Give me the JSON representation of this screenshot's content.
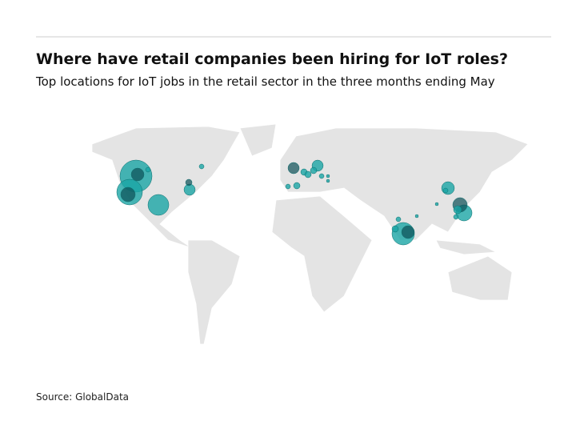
{
  "header": {
    "title": "Where have retail companies been hiring for IoT roles?",
    "subtitle": "Top locations for IoT jobs in the retail sector in the three months ending May"
  },
  "footer": {
    "source": "Source: GlobalData"
  }
}
